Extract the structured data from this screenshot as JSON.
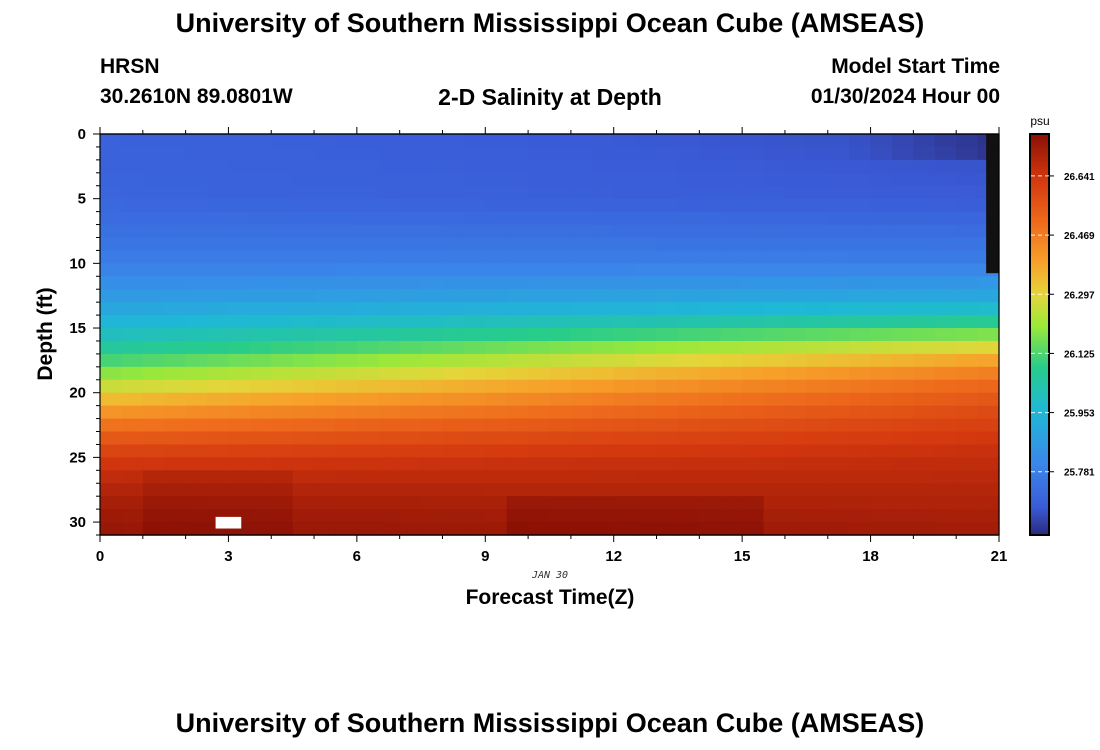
{
  "header": {
    "title": "University of Southern Mississippi Ocean Cube (AMSEAS)",
    "station": "HRSN",
    "coords": "30.2610N  89.0801W",
    "subtitle": "2-D Salinity at Depth",
    "model_label": "Model Start Time",
    "model_time": "01/30/2024 Hour 00",
    "footer_title": "University of Southern Mississippi Ocean Cube (AMSEAS)"
  },
  "chart_data": {
    "type": "heatmap",
    "title": "2-D Salinity at Depth",
    "xlabel": "Forecast Time(Z)",
    "ylabel": "Depth (ft)",
    "date_label": "JAN 30",
    "xlim": [
      0,
      21
    ],
    "ylim": [
      31,
      0
    ],
    "x_ticks": [
      "0",
      "3",
      "6",
      "9",
      "12",
      "15",
      "18",
      "21"
    ],
    "y_ticks": [
      "0",
      "5",
      "10",
      "15",
      "20",
      "25",
      "30"
    ],
    "x_tick_values": [
      0,
      3,
      6,
      9,
      12,
      15,
      18,
      21
    ],
    "y_tick_values": [
      0,
      5,
      10,
      15,
      20,
      25,
      30
    ],
    "colorbar": {
      "unit": "psu",
      "min": 25.6,
      "max": 26.76,
      "tick_labels": [
        "26.641",
        "26.469",
        "26.297",
        "26.125",
        "25.953",
        "25.781"
      ],
      "tick_values": [
        26.641,
        26.469,
        26.297,
        26.125,
        25.953,
        25.781
      ]
    },
    "grid": {
      "x_step_hours": 0.5,
      "z_step_ft": 1,
      "time_steps": 42,
      "depth_levels": 31
    },
    "profile_depths_ft": [
      0,
      5,
      10,
      13,
      15,
      17,
      19,
      21,
      23,
      25,
      27,
      29,
      31
    ],
    "profile_salinity_early": [
      25.7,
      25.71,
      25.78,
      25.88,
      25.97,
      26.08,
      26.22,
      26.38,
      26.52,
      26.62,
      26.68,
      26.72,
      26.74
    ],
    "profile_salinity_late": [
      25.66,
      25.68,
      25.78,
      25.93,
      26.12,
      26.35,
      26.5,
      26.57,
      26.62,
      26.66,
      26.68,
      26.7,
      26.72
    ],
    "features": {
      "bottom_max_hours": [
        2.7,
        12.5
      ],
      "bottom_max_value": 26.76,
      "surface_min_hours": [
        17.5,
        21
      ],
      "surface_min_value": 25.6
    }
  }
}
